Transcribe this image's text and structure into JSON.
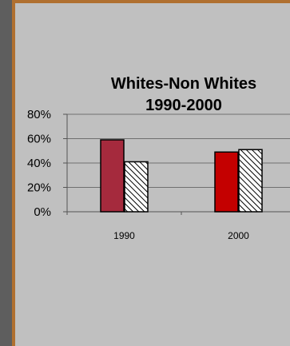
{
  "chart_data": {
    "type": "bar",
    "title_lines": [
      "Whites-Non Whites",
      "1990-2000"
    ],
    "categories": [
      "1990",
      "2000"
    ],
    "series": [
      {
        "values": [
          59,
          49
        ],
        "colors": [
          "#a52a3d",
          "#c40000"
        ]
      },
      {
        "values": [
          41,
          51
        ],
        "pattern": "diagonal-hatch"
      }
    ],
    "ylim": [
      0,
      80
    ],
    "yticks": [
      "0%",
      "20%",
      "40%",
      "60%",
      "80%"
    ],
    "grid": true,
    "legend": "none"
  }
}
